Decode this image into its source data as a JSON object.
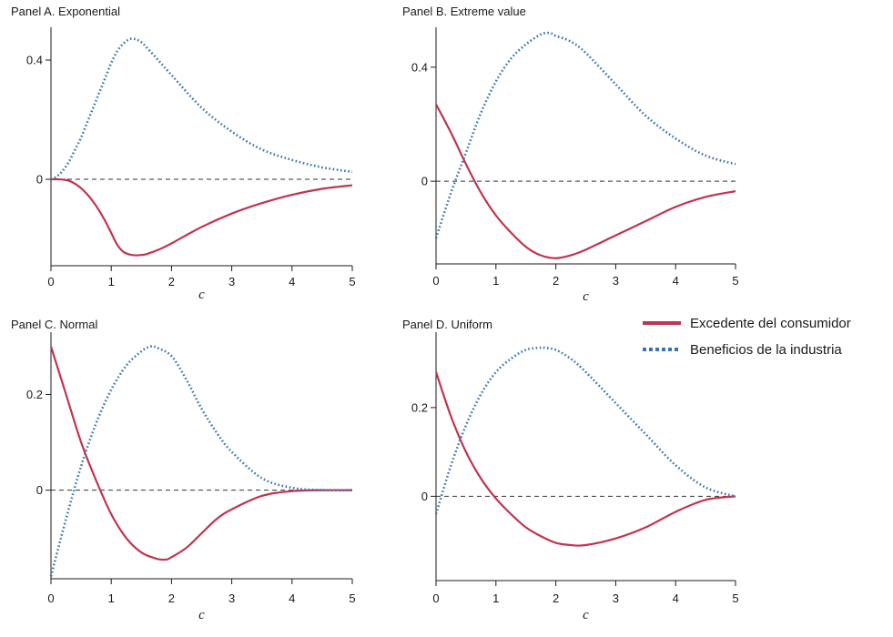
{
  "legend": [
    {
      "label": "Excedente del consumidor",
      "color": "#c0344f",
      "style": "solid"
    },
    {
      "label": "Beneficios de la industria",
      "color": "#3a74b0",
      "style": "dotted"
    }
  ],
  "colors": {
    "consumer": "#c0344f",
    "industry": "#3a74b0"
  },
  "chart_data": [
    {
      "type": "line",
      "title": "Panel A. Exponential",
      "xlabel": "c",
      "xlim": [
        0,
        5
      ],
      "ylim": [
        -0.29,
        0.51
      ],
      "xticks": [
        0,
        1,
        2,
        3,
        4,
        5
      ],
      "yticks": [
        0,
        0.4
      ],
      "ytick_labels": [
        "0",
        "0.4"
      ],
      "grid": false,
      "series": [
        {
          "key": "consumer",
          "x": [
            0,
            0.1,
            0.2,
            0.3,
            0.4,
            0.5,
            0.6,
            0.7,
            0.8,
            0.9,
            1.0,
            1.1,
            1.2,
            1.3,
            1.4,
            1.5,
            1.6,
            1.8,
            2.0,
            2.5,
            3.0,
            3.5,
            4.0,
            4.5,
            5.0
          ],
          "y": [
            0,
            0,
            -0.001,
            -0.005,
            -0.015,
            -0.03,
            -0.05,
            -0.075,
            -0.105,
            -0.14,
            -0.18,
            -0.22,
            -0.243,
            -0.252,
            -0.255,
            -0.254,
            -0.25,
            -0.235,
            -0.215,
            -0.16,
            -0.115,
            -0.08,
            -0.052,
            -0.032,
            -0.02
          ]
        },
        {
          "key": "industry",
          "x": [
            0,
            0.1,
            0.2,
            0.3,
            0.4,
            0.5,
            0.6,
            0.7,
            0.8,
            0.9,
            1.0,
            1.1,
            1.2,
            1.3,
            1.4,
            1.5,
            1.6,
            1.8,
            2.0,
            2.5,
            3.0,
            3.5,
            4.0,
            4.5,
            5.0
          ],
          "y": [
            0,
            0.01,
            0.03,
            0.06,
            0.1,
            0.14,
            0.19,
            0.24,
            0.29,
            0.34,
            0.39,
            0.43,
            0.455,
            0.47,
            0.47,
            0.46,
            0.44,
            0.395,
            0.35,
            0.24,
            0.16,
            0.1,
            0.065,
            0.04,
            0.025
          ]
        }
      ]
    },
    {
      "type": "line",
      "title": "Panel B. Extreme value",
      "xlabel": "c",
      "xlim": [
        0,
        5
      ],
      "ylim": [
        -0.29,
        0.54
      ],
      "xticks": [
        0,
        1,
        2,
        3,
        4,
        5
      ],
      "yticks": [
        0,
        0.4
      ],
      "ytick_labels": [
        "0",
        "0.4"
      ],
      "grid": false,
      "series": [
        {
          "key": "consumer",
          "x": [
            0,
            0.25,
            0.5,
            0.75,
            1.0,
            1.25,
            1.5,
            1.75,
            2.0,
            2.25,
            2.5,
            3.0,
            3.5,
            4.0,
            4.5,
            5.0
          ],
          "y": [
            0.27,
            0.17,
            0.06,
            -0.04,
            -0.12,
            -0.18,
            -0.23,
            -0.26,
            -0.27,
            -0.26,
            -0.24,
            -0.19,
            -0.14,
            -0.09,
            -0.055,
            -0.035
          ]
        },
        {
          "key": "industry",
          "x": [
            0,
            0.25,
            0.5,
            0.75,
            1.0,
            1.25,
            1.5,
            1.75,
            1.9,
            2.0,
            2.25,
            2.5,
            3.0,
            3.5,
            4.0,
            4.5,
            5.0
          ],
          "y": [
            -0.2,
            -0.04,
            0.1,
            0.24,
            0.35,
            0.43,
            0.48,
            0.515,
            0.52,
            0.51,
            0.49,
            0.45,
            0.34,
            0.23,
            0.15,
            0.09,
            0.06
          ]
        }
      ]
    },
    {
      "type": "line",
      "title": "Panel C. Normal",
      "xlabel": "c",
      "xlim": [
        0,
        5
      ],
      "ylim": [
        -0.185,
        0.33
      ],
      "xticks": [
        0,
        1,
        2,
        3,
        4,
        5
      ],
      "yticks": [
        0,
        0.2
      ],
      "ytick_labels": [
        "0",
        "0.2"
      ],
      "grid": false,
      "series": [
        {
          "key": "consumer",
          "x": [
            0,
            0.25,
            0.5,
            0.75,
            1.0,
            1.25,
            1.5,
            1.75,
            1.9,
            2.0,
            2.25,
            2.5,
            2.75,
            3.0,
            3.5,
            4.0,
            4.5,
            5.0
          ],
          "y": [
            0.3,
            0.2,
            0.1,
            0.02,
            -0.05,
            -0.1,
            -0.13,
            -0.143,
            -0.145,
            -0.14,
            -0.12,
            -0.09,
            -0.06,
            -0.04,
            -0.012,
            -0.002,
            0,
            0
          ]
        },
        {
          "key": "industry",
          "x": [
            0,
            0.25,
            0.5,
            0.75,
            1.0,
            1.25,
            1.5,
            1.65,
            1.75,
            2.0,
            2.25,
            2.5,
            2.75,
            3.0,
            3.5,
            4.0,
            4.5,
            5.0
          ],
          "y": [
            -0.18,
            -0.06,
            0.05,
            0.14,
            0.21,
            0.26,
            0.29,
            0.3,
            0.298,
            0.28,
            0.23,
            0.17,
            0.12,
            0.08,
            0.025,
            0.005,
            0,
            0
          ]
        }
      ]
    },
    {
      "type": "line",
      "title": "Panel D. Uniform",
      "xlabel": "c",
      "xlim": [
        0,
        5
      ],
      "ylim": [
        -0.19,
        0.37
      ],
      "xticks": [
        0,
        1,
        2,
        3,
        4,
        5
      ],
      "yticks": [
        0,
        0.2
      ],
      "ytick_labels": [
        "0",
        "0.2"
      ],
      "grid": false,
      "series": [
        {
          "key": "consumer",
          "x": [
            0,
            0.25,
            0.5,
            0.75,
            1.0,
            1.25,
            1.5,
            1.75,
            2.0,
            2.25,
            2.5,
            3.0,
            3.5,
            4.0,
            4.5,
            5.0
          ],
          "y": [
            0.28,
            0.18,
            0.1,
            0.04,
            -0.005,
            -0.04,
            -0.07,
            -0.09,
            -0.105,
            -0.11,
            -0.11,
            -0.095,
            -0.07,
            -0.035,
            -0.008,
            0
          ]
        },
        {
          "key": "industry",
          "x": [
            0,
            0.25,
            0.5,
            0.75,
            1.0,
            1.25,
            1.5,
            1.75,
            1.8,
            2.0,
            2.25,
            2.5,
            3.0,
            3.5,
            4.0,
            4.5,
            5.0
          ],
          "y": [
            -0.04,
            0.07,
            0.16,
            0.23,
            0.28,
            0.31,
            0.33,
            0.335,
            0.335,
            0.33,
            0.31,
            0.28,
            0.21,
            0.14,
            0.07,
            0.02,
            0
          ]
        }
      ]
    }
  ]
}
